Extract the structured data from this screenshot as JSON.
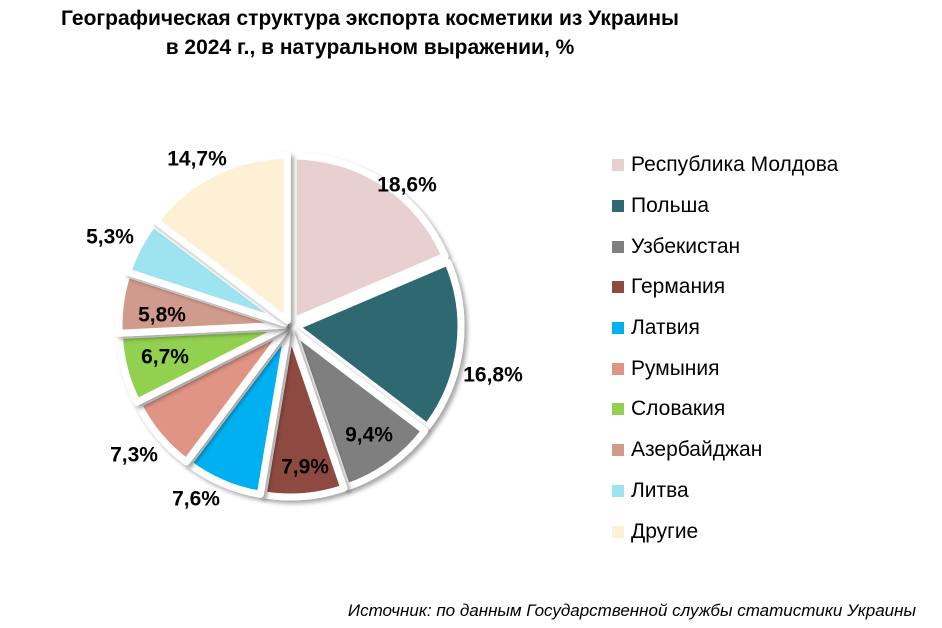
{
  "title": {
    "line1": "Географическая структура экспорта косметики из Украины",
    "line2": "в 2024 г., в натуральном выражении, %"
  },
  "source": "Источник: по данным Государственной службы статистики Украины",
  "chart_data": {
    "type": "pie",
    "title": "Географическая структура экспорта косметики из Украины в 2024 г., в натуральном выражении, %",
    "legend_position": "right",
    "slices": [
      {
        "name": "Республика Молдова",
        "value": 18.6,
        "label": "18,6%",
        "color": "#E8D0D0"
      },
      {
        "name": "Польша",
        "value": 16.8,
        "label": "16,8%",
        "color": "#2E6870"
      },
      {
        "name": "Узбекистан",
        "value": 9.4,
        "label": "9,4%",
        "color": "#7F7F7F"
      },
      {
        "name": "Германия",
        "value": 7.9,
        "label": "7,9%",
        "color": "#8E4A40"
      },
      {
        "name": "Латвия",
        "value": 7.6,
        "label": "7,6%",
        "color": "#00B0F0"
      },
      {
        "name": "Румыния",
        "value": 7.3,
        "label": "7,3%",
        "color": "#E09484"
      },
      {
        "name": "Словакия",
        "value": 6.7,
        "label": "6,7%",
        "color": "#92D050"
      },
      {
        "name": "Азербайджан",
        "value": 5.8,
        "label": "5,8%",
        "color": "#D09A8C"
      },
      {
        "name": "Литва",
        "value": 5.3,
        "label": "5,3%",
        "color": "#9DE3F0"
      },
      {
        "name": "Другие",
        "value": 14.7,
        "label": "14,7%",
        "color": "#FDF0D5"
      }
    ]
  }
}
